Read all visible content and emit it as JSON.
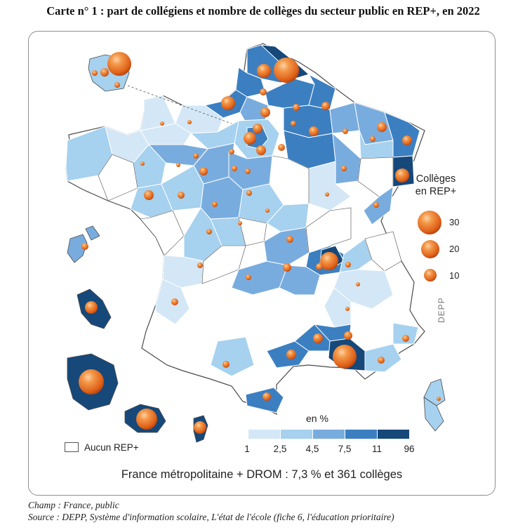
{
  "title": "Carte n° 1 : part de collégiens et nombre de collèges du secteur public en REP+, en 2022",
  "size_legend": {
    "title_line1": "Collèges",
    "title_line2": "en REP+",
    "labels": [
      "30",
      "20",
      "10"
    ]
  },
  "watermark": "DEPP",
  "color_legend": {
    "title": "en %",
    "breaks": [
      "1",
      "2,5",
      "4,5",
      "7,5",
      "11",
      "96"
    ],
    "colors": [
      "#d3e7f6",
      "#a6d1ef",
      "#79acde",
      "#3b7fc1",
      "#16487a"
    ]
  },
  "no_rep_label": "Aucun REP+",
  "summary": "France métropolitaine + DROM : 7,3 % et 361 collèges",
  "footer": {
    "champ": "Champ : France, public",
    "source": "Source : DEPP, Système d'information scolaire, L'état de l'école (fiche 6, l'éducation prioritaire)"
  }
}
